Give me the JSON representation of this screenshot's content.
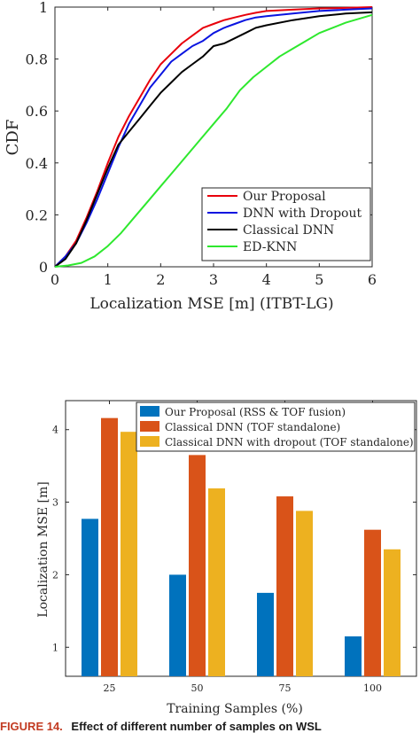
{
  "figure_caption": {
    "label": "FIGURE 14.",
    "text": "Effect of different number of samples on WSL"
  },
  "chart_data": [
    {
      "type": "line",
      "title": "",
      "xlabel": "Localization MSE [m] (ITBT-LG)",
      "ylabel": "CDF",
      "xlim": [
        0,
        6
      ],
      "ylim": [
        0,
        1
      ],
      "x_ticks": [
        "0",
        "1",
        "2",
        "3",
        "4",
        "5",
        "6"
      ],
      "y_ticks": [
        "0",
        "0.2",
        "0.4",
        "0.6",
        "0.8",
        "1"
      ],
      "grid": false,
      "legend_position": "bottom-right",
      "series": [
        {
          "name": "Our Proposal",
          "color": "#e8000b",
          "x": [
            0,
            0.2,
            0.4,
            0.6,
            0.8,
            1.0,
            1.2,
            1.4,
            1.6,
            1.8,
            2.0,
            2.2,
            2.4,
            2.6,
            2.8,
            3.0,
            3.2,
            3.4,
            3.6,
            3.8,
            4.0,
            4.5,
            5.0,
            5.5,
            6.0
          ],
          "y": [
            0,
            0.04,
            0.1,
            0.19,
            0.29,
            0.4,
            0.5,
            0.58,
            0.65,
            0.72,
            0.78,
            0.82,
            0.86,
            0.89,
            0.92,
            0.935,
            0.95,
            0.96,
            0.97,
            0.978,
            0.985,
            0.99,
            0.995,
            0.997,
            1.0
          ]
        },
        {
          "name": "DNN with Dropout",
          "color": "#0a14e0",
          "x": [
            0,
            0.2,
            0.4,
            0.6,
            0.8,
            1.0,
            1.2,
            1.4,
            1.6,
            1.8,
            2.0,
            2.2,
            2.4,
            2.6,
            2.8,
            3.0,
            3.2,
            3.4,
            3.6,
            3.8,
            4.0,
            4.5,
            5.0,
            5.5,
            6.0
          ],
          "y": [
            0,
            0.04,
            0.09,
            0.17,
            0.26,
            0.36,
            0.46,
            0.55,
            0.62,
            0.69,
            0.74,
            0.79,
            0.82,
            0.85,
            0.87,
            0.9,
            0.92,
            0.935,
            0.95,
            0.96,
            0.965,
            0.975,
            0.985,
            0.99,
            0.995
          ]
        },
        {
          "name": "Classical DNN",
          "color": "#000000",
          "x": [
            0,
            0.2,
            0.4,
            0.6,
            0.8,
            1.0,
            1.2,
            1.4,
            1.6,
            1.8,
            2.0,
            2.2,
            2.4,
            2.6,
            2.8,
            3.0,
            3.2,
            3.4,
            3.6,
            3.8,
            4.0,
            4.5,
            5.0,
            5.5,
            6.0
          ],
          "y": [
            0,
            0.03,
            0.09,
            0.18,
            0.28,
            0.38,
            0.47,
            0.52,
            0.57,
            0.62,
            0.67,
            0.71,
            0.75,
            0.78,
            0.81,
            0.85,
            0.86,
            0.88,
            0.9,
            0.92,
            0.93,
            0.95,
            0.965,
            0.975,
            0.98
          ]
        },
        {
          "name": "ED-KNN",
          "color": "#2ee82e",
          "x": [
            0,
            0.25,
            0.5,
            0.75,
            1.0,
            1.25,
            1.5,
            1.75,
            2.0,
            2.25,
            2.5,
            2.75,
            3.0,
            3.25,
            3.5,
            3.75,
            4.0,
            4.25,
            4.5,
            4.75,
            5.0,
            5.25,
            5.5,
            5.75,
            6.0
          ],
          "y": [
            0,
            0.005,
            0.015,
            0.04,
            0.08,
            0.13,
            0.19,
            0.25,
            0.31,
            0.37,
            0.43,
            0.49,
            0.55,
            0.61,
            0.68,
            0.73,
            0.77,
            0.81,
            0.84,
            0.87,
            0.9,
            0.92,
            0.94,
            0.955,
            0.97
          ]
        }
      ]
    },
    {
      "type": "bar",
      "title": "",
      "xlabel": "Training Samples (%)",
      "ylabel": "Localization MSE [m]",
      "ylim": [
        0.6,
        4.4
      ],
      "categories": [
        "25",
        "50",
        "75",
        "100"
      ],
      "y_ticks": [
        "1",
        "2",
        "3",
        "4"
      ],
      "grid": false,
      "legend_position": "top-right",
      "series": [
        {
          "name": "Our Proposal (RSS & TOF fusion)",
          "color": "#0072bd",
          "values": [
            2.77,
            2.0,
            1.75,
            1.15
          ]
        },
        {
          "name": "Classical DNN (TOF standalone)",
          "color": "#d95319",
          "values": [
            4.16,
            3.65,
            3.08,
            2.62
          ]
        },
        {
          "name": "Classical DNN with dropout (TOF standalone)",
          "color": "#edb120",
          "values": [
            3.97,
            3.19,
            2.88,
            2.35
          ]
        }
      ]
    }
  ]
}
